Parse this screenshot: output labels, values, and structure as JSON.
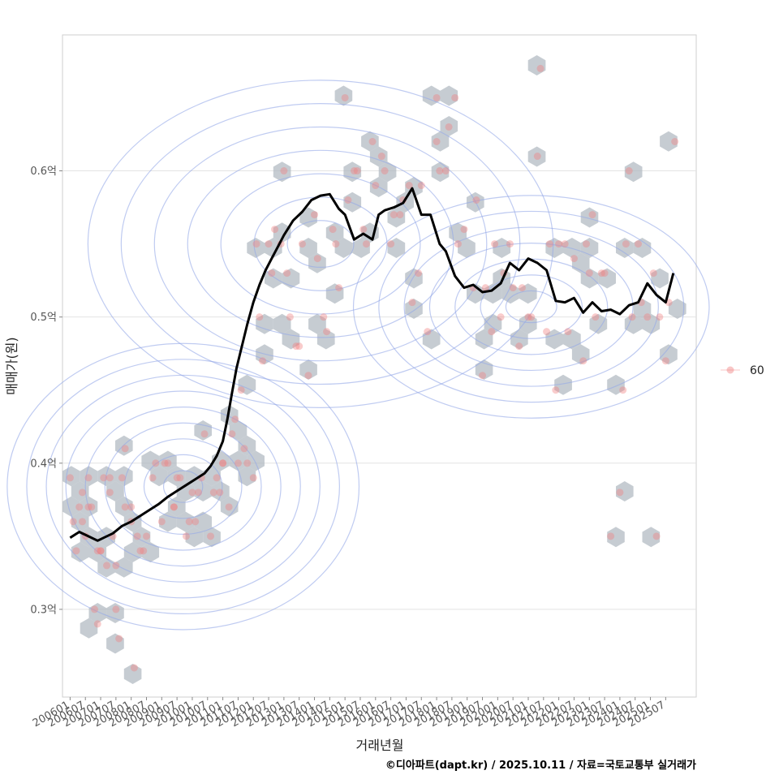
{
  "chart_data": {
    "type": "scatter",
    "xlabel": "거래년월",
    "ylabel": "매매가(원)",
    "caption": "©디아파트(dapt.kr) / 2025.10.11 / 자료=국토교통부 실거래가",
    "y_ticks": [
      {
        "value": 0.3,
        "label": "0.3억"
      },
      {
        "value": 0.4,
        "label": "0.4억"
      },
      {
        "value": 0.5,
        "label": "0.5억"
      },
      {
        "value": 0.6,
        "label": "0.6억"
      }
    ],
    "ylim": [
      0.24,
      0.693
    ],
    "xlim": [
      2005.75,
      2026.5
    ],
    "x_ticks": [
      "200601",
      "200607",
      "200701",
      "200707",
      "200801",
      "200807",
      "200901",
      "200907",
      "201001",
      "201007",
      "201101",
      "201107",
      "201201",
      "201207",
      "201301",
      "201307",
      "201401",
      "201407",
      "201501",
      "201507",
      "201601",
      "201607",
      "201701",
      "201707",
      "201801",
      "201807",
      "201901",
      "201907",
      "202001",
      "202007",
      "202101",
      "202107",
      "202201",
      "202207",
      "202301",
      "202307",
      "202401",
      "202407",
      "202501",
      "202507"
    ],
    "legend": {
      "label": "60",
      "color": "#f08080",
      "position": "right"
    },
    "colors": {
      "points": "#f08080",
      "hex": "#aeb6bf",
      "contour": "#94a9e8",
      "line": "#000000",
      "grid": "#e3e3e3"
    },
    "series": [
      {
        "name": "moving-average",
        "type": "line",
        "x": [
          2006.0,
          2006.3,
          2006.6,
          2006.9,
          2007.1,
          2007.4,
          2007.7,
          2008.0,
          2008.3,
          2008.6,
          2008.9,
          2009.2,
          2009.5,
          2009.8,
          2010.1,
          2010.4,
          2010.6,
          2010.8,
          2011.0,
          2011.15,
          2011.3,
          2011.45,
          2011.6,
          2011.8,
          2012.0,
          2012.2,
          2012.4,
          2012.6,
          2012.8,
          2013.0,
          2013.3,
          2013.6,
          2013.9,
          2014.2,
          2014.5,
          2014.8,
          2015.0,
          2015.3,
          2015.6,
          2015.9,
          2016.1,
          2016.3,
          2016.6,
          2016.9,
          2017.2,
          2017.5,
          2017.8,
          2018.1,
          2018.3,
          2018.6,
          2018.9,
          2019.2,
          2019.5,
          2019.8,
          2020.1,
          2020.4,
          2020.7,
          2021.0,
          2021.3,
          2021.6,
          2021.9,
          2022.2,
          2022.5,
          2022.8,
          2023.1,
          2023.4,
          2023.7,
          2024.0,
          2024.3,
          2024.6,
          2024.9,
          2025.2,
          2025.5,
          2025.75
        ],
        "y": [
          0.349,
          0.353,
          0.35,
          0.347,
          0.349,
          0.352,
          0.357,
          0.36,
          0.364,
          0.368,
          0.372,
          0.377,
          0.381,
          0.385,
          0.389,
          0.393,
          0.398,
          0.405,
          0.415,
          0.43,
          0.448,
          0.465,
          0.478,
          0.495,
          0.51,
          0.522,
          0.532,
          0.54,
          0.548,
          0.556,
          0.566,
          0.572,
          0.58,
          0.583,
          0.584,
          0.574,
          0.57,
          0.553,
          0.557,
          0.553,
          0.57,
          0.573,
          0.575,
          0.578,
          0.588,
          0.57,
          0.57,
          0.55,
          0.545,
          0.528,
          0.52,
          0.522,
          0.517,
          0.518,
          0.523,
          0.537,
          0.532,
          0.54,
          0.537,
          0.532,
          0.511,
          0.51,
          0.513,
          0.503,
          0.51,
          0.504,
          0.505,
          0.502,
          0.508,
          0.51,
          0.523,
          0.515,
          0.51,
          0.53
        ]
      },
      {
        "name": "60",
        "type": "scatter",
        "x": [
          2006.0,
          2006.1,
          2006.2,
          2006.3,
          2006.4,
          2006.5,
          2006.6,
          2006.7,
          2006.8,
          2006.9,
          2007.0,
          2007.1,
          2007.2,
          2007.3,
          2007.4,
          2007.5,
          2007.6,
          2007.7,
          2007.8,
          2008.0,
          2008.1,
          2008.3,
          2008.5,
          2008.7,
          2009.0,
          2009.2,
          2009.4,
          2009.6,
          2009.8,
          2010.0,
          2010.2,
          2010.4,
          2010.6,
          2010.8,
          2011.0,
          2011.2,
          2011.4,
          2011.6,
          2011.8,
          2012.0,
          2012.3,
          2012.6,
          2012.9,
          2013.2,
          2013.5,
          2013.8,
          2014.1,
          2014.4,
          2014.7,
          2015.0,
          2015.3,
          2015.6,
          2015.9,
          2016.2,
          2016.5,
          2016.8,
          2017.1,
          2017.4,
          2017.7,
          2018.0,
          2018.3,
          2018.6,
          2018.9,
          2019.2,
          2019.5,
          2019.8,
          2020.1,
          2020.4,
          2020.7,
          2021.0,
          2021.3,
          2021.6,
          2021.9,
          2022.2,
          2022.5,
          2022.8,
          2023.1,
          2023.4,
          2023.7,
          2024.0,
          2024.3,
          2024.6,
          2024.9,
          2025.2,
          2025.5,
          2025.8,
          2006.4,
          2006.9,
          2007.3,
          2007.8,
          2008.2,
          2008.8,
          2009.4,
          2009.9,
          2010.3,
          2010.9,
          2011.3,
          2011.7,
          2012.2,
          2012.7,
          2013.1,
          2013.6,
          2014.0,
          2014.6,
          2015.1,
          2015.7,
          2016.3,
          2016.9,
          2017.5,
          2018.1,
          2018.7,
          2019.3,
          2019.9,
          2020.5,
          2021.1,
          2021.7,
          2022.3,
          2022.9,
          2023.5,
          2024.1,
          2024.7,
          2025.3,
          2007.0,
          2007.5,
          2008.4,
          2009.1,
          2010.1,
          2010.7,
          2011.5,
          2012.5,
          2013.4,
          2014.3,
          2015.4,
          2016.0,
          2017.2,
          2018.4,
          2019.6,
          2020.8,
          2022.0,
          2023.2,
          2024.4,
          2025.6,
          2006.6,
          2008.0,
          2009.5,
          2011.0,
          2012.1,
          2013.0,
          2014.8,
          2016.6,
          2018.0,
          2020.2,
          2021.4,
          2023.0,
          2024.2,
          2025.1
        ],
        "y": [
          0.39,
          0.36,
          0.34,
          0.37,
          0.36,
          0.35,
          0.39,
          0.37,
          0.3,
          0.29,
          0.34,
          0.39,
          0.33,
          0.38,
          0.35,
          0.3,
          0.28,
          0.39,
          0.41,
          0.37,
          0.26,
          0.34,
          0.35,
          0.39,
          0.36,
          0.4,
          0.37,
          0.39,
          0.35,
          0.38,
          0.38,
          0.42,
          0.35,
          0.39,
          0.4,
          0.37,
          0.43,
          0.45,
          0.4,
          0.39,
          0.47,
          0.53,
          0.55,
          0.5,
          0.48,
          0.46,
          0.54,
          0.49,
          0.55,
          0.65,
          0.6,
          0.56,
          0.62,
          0.61,
          0.55,
          0.57,
          0.59,
          0.53,
          0.49,
          0.62,
          0.6,
          0.65,
          0.56,
          0.52,
          0.46,
          0.49,
          0.5,
          0.55,
          0.48,
          0.5,
          0.61,
          0.49,
          0.45,
          0.55,
          0.54,
          0.47,
          0.57,
          0.53,
          0.35,
          0.38,
          0.6,
          0.55,
          0.5,
          0.35,
          0.47,
          0.62,
          0.38,
          0.34,
          0.39,
          0.37,
          0.35,
          0.4,
          0.37,
          0.36,
          0.39,
          0.38,
          0.42,
          0.41,
          0.5,
          0.56,
          0.53,
          0.55,
          0.57,
          0.56,
          0.58,
          0.55,
          0.6,
          0.58,
          0.59,
          0.6,
          0.55,
          0.58,
          0.55,
          0.52,
          0.5,
          0.55,
          0.49,
          0.55,
          0.53,
          0.45,
          0.51,
          0.5,
          0.34,
          0.33,
          0.34,
          0.4,
          0.36,
          0.38,
          0.4,
          0.55,
          0.48,
          0.5,
          0.6,
          0.59,
          0.51,
          0.63,
          0.52,
          0.52,
          0.55,
          0.5,
          0.5,
          0.51,
          0.37,
          0.36,
          0.39,
          0.4,
          0.55,
          0.6,
          0.52,
          0.57,
          0.65,
          0.53,
          0.67,
          0.53,
          0.55,
          0.53
        ],
        "counts_note": "individual transactions; each point equals one transaction"
      }
    ]
  }
}
